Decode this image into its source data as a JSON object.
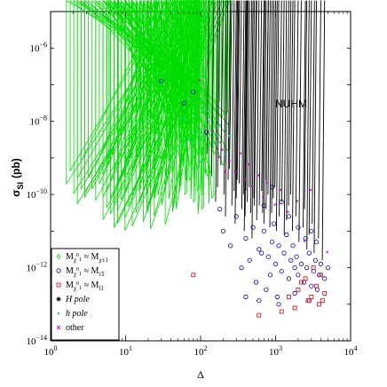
{
  "chart_data": {
    "type": "scatter",
    "title": "",
    "annotation": "NUHM",
    "xlabel": "Δ",
    "ylabel": "σ",
    "ylabel_sub": "SI",
    "ylabel_unit": "(pb)",
    "xscale": "log",
    "yscale": "log",
    "xlim": [
      1,
      10000
    ],
    "ylim": [
      1e-14,
      1e-05
    ],
    "grid": false,
    "legend_position": "bottom-left",
    "x_ticks": [
      {
        "value": 1,
        "base": "10",
        "exp": "0"
      },
      {
        "value": 10,
        "base": "10",
        "exp": "1"
      },
      {
        "value": 100,
        "base": "10",
        "exp": "2"
      },
      {
        "value": 1000,
        "base": "10",
        "exp": "3"
      },
      {
        "value": 10000,
        "base": "10",
        "exp": "4"
      }
    ],
    "y_ticks": [
      {
        "value": 1e-14,
        "base": "10",
        "exp": "−14"
      },
      {
        "value": 1e-12,
        "base": "10",
        "exp": "−12"
      },
      {
        "value": 1e-10,
        "base": "10",
        "exp": "−10"
      },
      {
        "value": 1e-08,
        "base": "10",
        "exp": "−8"
      },
      {
        "value": 1e-06,
        "base": "10",
        "exp": "−6"
      }
    ],
    "series": [
      {
        "legend_main": "M",
        "legend_sub1": "χ",
        "legend_sup1": "0",
        "legend_sub2": "1",
        "legend_approx": "≈",
        "legend_main2": "M",
        "legend_tail": "χ±1",
        "color": "#00dd00",
        "marker": "diamond",
        "points": [
          [
            8.0,
            -9.8
          ],
          [
            10.0,
            -9.5
          ],
          [
            12.0,
            -9.0
          ],
          [
            14.0,
            -8.6
          ],
          [
            16.0,
            -9.9
          ],
          [
            18.0,
            -8.2
          ],
          [
            20.0,
            -8.8
          ],
          [
            22.0,
            -7.9
          ],
          [
            24.0,
            -9.3
          ],
          [
            26.0,
            -8.4
          ],
          [
            28.0,
            -7.6
          ],
          [
            30.0,
            -9.0
          ],
          [
            32.0,
            -8.1
          ],
          [
            34.0,
            -7.3
          ],
          [
            36.0,
            -8.7
          ],
          [
            38.0,
            -7.8
          ],
          [
            40.0,
            -9.4
          ],
          [
            42.0,
            -8.3
          ],
          [
            44.0,
            -7.5
          ],
          [
            46.0,
            -8.9
          ],
          [
            48.0,
            -8.0
          ],
          [
            50.0,
            -7.1
          ],
          [
            52.0,
            -8.5
          ],
          [
            54.0,
            -7.7
          ],
          [
            56.0,
            -9.1
          ],
          [
            58.0,
            -8.2
          ],
          [
            60.0,
            -7.4
          ],
          [
            62.0,
            -8.6
          ],
          [
            64.0,
            -7.9
          ],
          [
            66.0,
            -9.6
          ],
          [
            68.0,
            -8.4
          ],
          [
            70.0,
            -7.2
          ],
          [
            72.0,
            -8.8
          ],
          [
            74.0,
            -7.6
          ],
          [
            76.0,
            -9.2
          ],
          [
            78.0,
            -8.1
          ],
          [
            80.0,
            -7.0
          ],
          [
            82.0,
            -8.7
          ],
          [
            84.0,
            -7.8
          ],
          [
            86.0,
            -9.0
          ],
          [
            88.0,
            -8.3
          ],
          [
            90.0,
            -7.5
          ],
          [
            92.0,
            -8.9
          ],
          [
            94.0,
            -7.7
          ],
          [
            96.0,
            -9.3
          ],
          [
            98.0,
            -8.0
          ],
          [
            100.0,
            -7.3
          ],
          [
            105.0,
            -8.5
          ],
          [
            110.0,
            -7.8
          ],
          [
            115.0,
            -9.1
          ],
          [
            120.0,
            -8.2
          ],
          [
            125.0,
            -7.6
          ],
          [
            130.0,
            -8.7
          ],
          [
            135.0,
            -7.9
          ],
          [
            140.0,
            -9.4
          ],
          [
            145.0,
            -8.4
          ],
          [
            150.0,
            -7.7
          ],
          [
            160.0,
            -8.9
          ],
          [
            170.0,
            -8.1
          ],
          [
            180.0,
            -7.5
          ],
          [
            190.0,
            -8.6
          ],
          [
            200.0,
            -7.9
          ],
          [
            210.0,
            -9.2
          ],
          [
            220.0,
            -8.3
          ],
          [
            230.0,
            -7.8
          ],
          [
            240.0,
            -8.8
          ],
          [
            250.0,
            -8.1
          ],
          [
            20.0,
            -10.5
          ],
          [
            25.0,
            -10.1
          ],
          [
            35.0,
            -9.7
          ],
          [
            45.0,
            -10.3
          ],
          [
            55.0,
            -9.8
          ],
          [
            65.0,
            -10.0
          ],
          [
            75.0,
            -9.6
          ],
          [
            85.0,
            -10.2
          ],
          [
            95.0,
            -9.9
          ],
          [
            110.0,
            -10.4
          ],
          [
            130.0,
            -9.5
          ],
          [
            150.0,
            -10.1
          ],
          [
            30.0,
            -6.9
          ],
          [
            40.0,
            -6.6
          ],
          [
            50.0,
            -6.8
          ],
          [
            60.0,
            -6.5
          ],
          [
            70.0,
            -6.9
          ],
          [
            80.0,
            -6.7
          ],
          [
            90.0,
            -7.0
          ],
          [
            110.0,
            -6.8
          ],
          [
            6.0,
            -9.2
          ],
          [
            7.0,
            -8.9
          ]
        ]
      },
      {
        "legend_main": "M",
        "legend_sub1": "χ",
        "legend_sup1": "0",
        "legend_sub2": "1",
        "legend_approx": "≈",
        "legend_main2": "M",
        "legend_tail": "τ̃1",
        "color": "#0000cc",
        "marker": "circle",
        "points": [
          [
            300,
            -10.6
          ],
          [
            400,
            -11.2
          ],
          [
            500,
            -10.9
          ],
          [
            600,
            -11.5
          ],
          [
            700,
            -11.0
          ],
          [
            800,
            -11.7
          ],
          [
            900,
            -11.3
          ],
          [
            1000,
            -11.9
          ],
          [
            1100,
            -11.4
          ],
          [
            1200,
            -12.1
          ],
          [
            1300,
            -11.6
          ],
          [
            1400,
            -11.1
          ],
          [
            1500,
            -12.3
          ],
          [
            1600,
            -11.8
          ],
          [
            1700,
            -11.4
          ],
          [
            1800,
            -12.0
          ],
          [
            1900,
            -11.7
          ],
          [
            2000,
            -12.2
          ],
          [
            2200,
            -11.9
          ],
          [
            2400,
            -12.4
          ],
          [
            2600,
            -12.0
          ],
          [
            2800,
            -11.6
          ],
          [
            3000,
            -12.5
          ],
          [
            3200,
            -12.1
          ],
          [
            3400,
            -11.8
          ],
          [
            3600,
            -12.6
          ],
          [
            3800,
            -12.2
          ],
          [
            4000,
            -11.9
          ],
          [
            4500,
            -12.3
          ],
          [
            5000,
            -12.0
          ],
          [
            350,
            -12.0
          ],
          [
            450,
            -11.8
          ],
          [
            550,
            -12.4
          ],
          [
            650,
            -11.6
          ],
          [
            750,
            -12.6
          ],
          [
            850,
            -12.2
          ],
          [
            950,
            -10.8
          ],
          [
            1050,
            -12.8
          ],
          [
            250,
            -11.4
          ],
          [
            200,
            -11.0
          ],
          [
            180,
            -10.4
          ],
          [
            900,
            -9.8
          ],
          [
            1200,
            -10.2
          ],
          [
            1500,
            -10.6
          ],
          [
            2000,
            -10.9
          ],
          [
            2500,
            -11.2
          ],
          [
            3000,
            -11.0
          ],
          [
            700,
            -10.3
          ],
          [
            60,
            -7.5
          ],
          [
            80,
            -7.2
          ],
          [
            30,
            -6.9
          ],
          [
            120,
            -8.3
          ],
          [
            400,
            -12.8
          ],
          [
            600,
            -12.9
          ],
          [
            1100,
            -13.0
          ],
          [
            1800,
            -12.7
          ],
          [
            3500,
            -11.3
          ],
          [
            2800,
            -12.9
          ]
        ]
      },
      {
        "legend_main": "M",
        "legend_sub1": "χ",
        "legend_sup1": "0",
        "legend_sub2": "1",
        "legend_approx": "≈",
        "legend_main2": "M",
        "legend_tail": "t̃1",
        "color": "#dd0000",
        "marker": "square",
        "points": [
          [
            2000,
            -12.6
          ],
          [
            2500,
            -12.3
          ],
          [
            3000,
            -12.8
          ],
          [
            3500,
            -12.5
          ],
          [
            4000,
            -12.2
          ],
          [
            4500,
            -12.7
          ],
          [
            3200,
            -12.0
          ],
          [
            2700,
            -12.9
          ],
          [
            1800,
            -13.1
          ],
          [
            3800,
            -13.0
          ],
          [
            2200,
            -12.4
          ],
          [
            4200,
            -12.9
          ],
          [
            1500,
            -12.8
          ],
          [
            600,
            -13.3
          ],
          [
            80,
            -12.2
          ],
          [
            1200,
            -13.2
          ]
        ]
      },
      {
        "legend_main": "H pole",
        "color": "#000000",
        "marker": "star",
        "points": [
          [
            150,
            -9.5
          ],
          [
            180,
            -9.8
          ],
          [
            200,
            -9.2
          ],
          [
            220,
            -10.0
          ],
          [
            250,
            -9.6
          ],
          [
            280,
            -10.3
          ],
          [
            300,
            -9.9
          ],
          [
            320,
            -10.1
          ],
          [
            350,
            -9.7
          ],
          [
            380,
            -10.4
          ],
          [
            400,
            -10.0
          ],
          [
            420,
            -10.6
          ],
          [
            450,
            -10.2
          ],
          [
            480,
            -9.8
          ],
          [
            500,
            -10.5
          ],
          [
            550,
            -10.1
          ],
          [
            600,
            -10.7
          ],
          [
            650,
            -10.3
          ],
          [
            700,
            -9.9
          ],
          [
            750,
            -10.8
          ],
          [
            800,
            -10.4
          ],
          [
            850,
            -10.0
          ],
          [
            900,
            -10.9
          ],
          [
            950,
            -10.5
          ],
          [
            1000,
            -10.1
          ],
          [
            1100,
            -11.0
          ],
          [
            1200,
            -10.6
          ],
          [
            1300,
            -10.2
          ],
          [
            1400,
            -11.1
          ],
          [
            1500,
            -10.7
          ],
          [
            1600,
            -10.3
          ],
          [
            1800,
            -11.0
          ],
          [
            2000,
            -10.6
          ],
          [
            2200,
            -11.3
          ],
          [
            2500,
            -10.9
          ],
          [
            2800,
            -11.5
          ],
          [
            3000,
            -11.1
          ],
          [
            3500,
            -11.6
          ],
          [
            4000,
            -11.2
          ],
          [
            4500,
            -11.8
          ],
          [
            260,
            -9.3
          ],
          [
            330,
            -9.6
          ],
          [
            430,
            -9.9
          ],
          [
            560,
            -10.3
          ],
          [
            720,
            -10.5
          ],
          [
            130,
            -8.9
          ],
          [
            170,
            -10.2
          ],
          [
            230,
            -10.6
          ],
          [
            310,
            -10.8
          ],
          [
            410,
            -11.0
          ],
          [
            520,
            -11.2
          ],
          [
            800,
            -9.6
          ],
          [
            1050,
            -9.8
          ],
          [
            1700,
            -10.0
          ],
          [
            2600,
            -10.4
          ],
          [
            3300,
            -10.8
          ]
        ]
      },
      {
        "legend_main": "h pole",
        "color": "#00cccc",
        "marker": "dot",
        "points": [
          [
            60,
            -7.9
          ],
          [
            90,
            -8.3
          ],
          [
            120,
            -7.7
          ],
          [
            150,
            -8.6
          ],
          [
            180,
            -8.1
          ],
          [
            210,
            -8.9
          ],
          [
            100,
            -9.1
          ],
          [
            70,
            -8.5
          ],
          [
            240,
            -8.4
          ],
          [
            130,
            -8.0
          ]
        ]
      },
      {
        "legend_main": "other",
        "color": "#dd00dd",
        "marker": "x",
        "points": [
          [
            200,
            -8.8
          ],
          [
            250,
            -9.1
          ],
          [
            300,
            -9.4
          ],
          [
            350,
            -8.9
          ],
          [
            400,
            -9.6
          ],
          [
            450,
            -9.2
          ],
          [
            500,
            -9.8
          ],
          [
            600,
            -9.5
          ],
          [
            700,
            -10.1
          ],
          [
            800,
            -9.7
          ],
          [
            1000,
            -10.3
          ],
          [
            1200,
            -9.9
          ],
          [
            150,
            -8.3
          ],
          [
            180,
            -9.0
          ],
          [
            220,
            -9.4
          ],
          [
            1500,
            -10.5
          ],
          [
            2000,
            -10.2
          ],
          [
            3000,
            -9.9
          ],
          [
            130,
            -6.4
          ],
          [
            100,
            -6.9
          ],
          [
            5000,
            -11.6
          ],
          [
            2500,
            -11.3
          ]
        ]
      }
    ]
  }
}
